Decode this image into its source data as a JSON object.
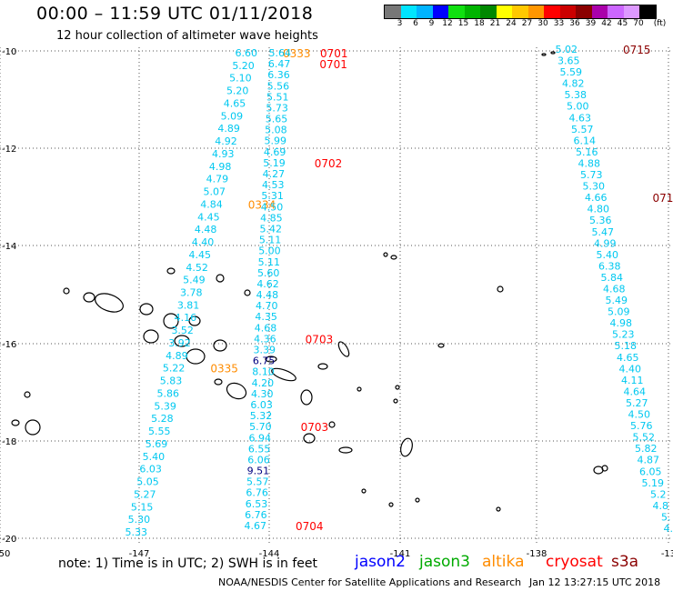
{
  "header": {
    "title": "00:00 – 11:59 UTC 01/11/2018",
    "subtitle": "12 hour collection of altimeter wave heights"
  },
  "colorbar": {
    "unit": "(ft)",
    "ticks": [
      "3",
      "6",
      "9",
      "12",
      "15",
      "18",
      "21",
      "24",
      "27",
      "30",
      "33",
      "36",
      "39",
      "42",
      "45",
      "70"
    ],
    "colors": [
      "#777777",
      "#00e5ff",
      "#00b4ff",
      "#0000ff",
      "#10e010",
      "#00b400",
      "#008800",
      "#ffff00",
      "#ffc800",
      "#ff9600",
      "#ff0000",
      "#cc0000",
      "#8b0000",
      "#aa00aa",
      "#cc66ff",
      "#dd99ff",
      "#000000"
    ]
  },
  "map": {
    "x_ticks": [
      "-150",
      "-147",
      "-144",
      "-141",
      "-138",
      "-13"
    ],
    "y_ticks": [
      "-10",
      "-12",
      "-14",
      "-16",
      "-18",
      "-20"
    ],
    "colors": {
      "swh_low": "#00c8f0",
      "swh_mid": "#000080",
      "jason2": "#0000ff",
      "jason3": "#00aa00",
      "altika": "#ff8c00",
      "cryosat": "#ff0000",
      "s3a": "#8b0000"
    },
    "tracks": [
      {
        "values": [
          "6.60",
          "5.20",
          "5.10",
          "5.20",
          "4.65",
          "5.09",
          "4.89",
          "4.92",
          "4.93",
          "4.98",
          "4.79",
          "5.07",
          "4.84",
          "4.45",
          "4.48",
          "4.40",
          "4.45",
          "4.52",
          "5.49",
          "3.78",
          "3.81",
          "4.16",
          "3.52",
          "3.92",
          "4.89",
          "5.22",
          "5.83",
          "5.86",
          "5.39",
          "5.28",
          "5.55",
          "5.69",
          "5.40",
          "6.03",
          "5.05",
          "5.27",
          "5.15",
          "5.30",
          "5.33"
        ],
        "time_labels": [
          {
            "text": "0333",
            "color": "altika",
            "row": 0
          },
          {
            "text": "0334",
            "color": "altika",
            "row": 12
          },
          {
            "text": "0335",
            "color": "altika",
            "row": 25
          }
        ]
      },
      {
        "values": [
          "5.64",
          "6.47",
          "6.36",
          "5.56",
          "5.51",
          "5.73",
          "5.65",
          "5.08",
          "5.99",
          "4.69",
          "5.19",
          "4.27",
          "4.53",
          "5.31",
          "4.50",
          "4.85",
          "5.42",
          "5.11",
          "5.00",
          "5.11",
          "5.60",
          "4.62",
          "4.48",
          "4.70",
          "4.35",
          "4.68",
          "4.36",
          "3.39",
          "6.75",
          "8.10",
          "4.20",
          "4.30",
          "6.03",
          "5.32",
          "5.70",
          "6.94",
          "6.55",
          "6.06",
          "9.51",
          "5.57",
          "6.76",
          "6.53",
          "6.76",
          "4.67"
        ],
        "mid_rows": [
          28,
          38
        ],
        "time_labels": [
          {
            "text": "0701",
            "color": "cryosat",
            "row": 0
          },
          {
            "text": "0701",
            "color": "cryosat",
            "row": 1
          },
          {
            "text": "0702",
            "color": "cryosat",
            "row": 10
          },
          {
            "text": "0703",
            "color": "cryosat",
            "row": 26
          },
          {
            "text": "0703",
            "color": "cryosat",
            "row": 34
          },
          {
            "text": "0704",
            "color": "cryosat",
            "row": 43
          }
        ]
      },
      {
        "values": [
          "5.02",
          "3.65",
          "5.59",
          "4.82",
          "5.38",
          "5.00",
          "4.63",
          "5.57",
          "6.14",
          "5.16",
          "4.88",
          "5.73",
          "5.30",
          "4.66",
          "4.80",
          "5.36",
          "5.47",
          "4.99",
          "5.40",
          "6.38",
          "5.84",
          "4.68",
          "5.49",
          "5.09",
          "4.98",
          "5.23",
          "5.18",
          "4.65",
          "4.40",
          "4.11",
          "4.64",
          "5.27",
          "4.50",
          "5.76",
          "5.52",
          "5.82",
          "4.87",
          "6.05",
          "5.19",
          "5.2",
          "4.8",
          "5.",
          "4."
        ],
        "time_labels": [
          {
            "text": "0715",
            "color": "s3a",
            "row": 0
          },
          {
            "text": "0714",
            "color": "s3a",
            "row": 13
          },
          {
            "text": "07",
            "color": "s3a",
            "row": 31
          }
        ]
      }
    ]
  },
  "footer": {
    "note": "note: 1) Time is in UTC; 2) SWH is in feet",
    "satellites": [
      {
        "name": "jason2",
        "color": "#0000ff"
      },
      {
        "name": "jason3",
        "color": "#00aa00"
      },
      {
        "name": "altika",
        "color": "#ff8c00"
      },
      {
        "name": "cryosat",
        "color": "#ff0000"
      },
      {
        "name": "s3a",
        "color": "#8b0000"
      }
    ],
    "credit": "NOAA/NESDIS Center for Satellite Applications and Research",
    "timestamp": "Jan 12 13:27:15 UTC 2018"
  }
}
